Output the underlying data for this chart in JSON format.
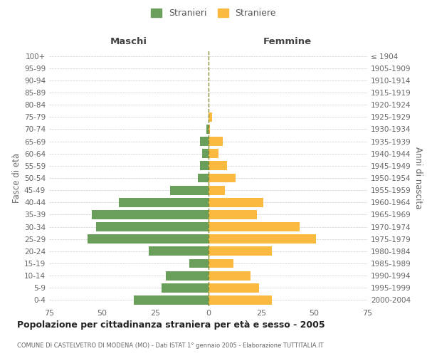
{
  "age_groups": [
    "0-4",
    "5-9",
    "10-14",
    "15-19",
    "20-24",
    "25-29",
    "30-34",
    "35-39",
    "40-44",
    "45-49",
    "50-54",
    "55-59",
    "60-64",
    "65-69",
    "70-74",
    "75-79",
    "80-84",
    "85-89",
    "90-94",
    "95-99",
    "100+"
  ],
  "birth_years": [
    "2000-2004",
    "1995-1999",
    "1990-1994",
    "1985-1989",
    "1980-1984",
    "1975-1979",
    "1970-1974",
    "1965-1969",
    "1960-1964",
    "1955-1959",
    "1950-1954",
    "1945-1949",
    "1940-1944",
    "1935-1939",
    "1930-1934",
    "1925-1929",
    "1920-1924",
    "1915-1919",
    "1910-1914",
    "1905-1909",
    "≤ 1904"
  ],
  "males": [
    35,
    22,
    20,
    9,
    28,
    57,
    53,
    55,
    42,
    18,
    5,
    4,
    3,
    4,
    1,
    0,
    0,
    0,
    0,
    0,
    0
  ],
  "females": [
    30,
    24,
    20,
    12,
    30,
    51,
    43,
    23,
    26,
    8,
    13,
    9,
    5,
    7,
    1,
    2,
    0,
    0,
    0,
    0,
    0
  ],
  "male_color": "#6a9e5b",
  "female_color": "#f9ba3f",
  "background_color": "#ffffff",
  "grid_color": "#cccccc",
  "title": "Popolazione per cittadinanza straniera per età e sesso - 2005",
  "subtitle": "COMUNE DI CASTELVETRO DI MODENA (MO) - Dati ISTAT 1° gennaio 2005 - Elaborazione TUTTITALIA.IT",
  "xlabel_left": "Maschi",
  "xlabel_right": "Femmine",
  "ylabel_left": "Fasce di età",
  "ylabel_right": "Anni di nascita",
  "legend_male": "Stranieri",
  "legend_female": "Straniere",
  "xlim": 75
}
